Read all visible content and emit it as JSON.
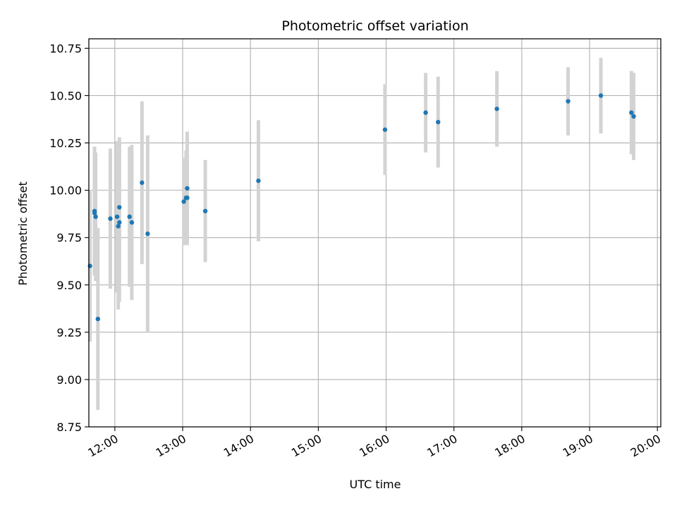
{
  "chart_data": {
    "type": "scatter",
    "title": "Photometric offset variation",
    "xlabel": "UTC time",
    "ylabel": "Photometric offset",
    "x_axis_kind": "time",
    "xlim": [
      "11:37",
      "20:03"
    ],
    "ylim": [
      8.75,
      10.8
    ],
    "grid": true,
    "x_ticks": [
      "12:00",
      "13:00",
      "14:00",
      "15:00",
      "16:00",
      "17:00",
      "18:00",
      "19:00",
      "20:00"
    ],
    "y_ticks": [
      "8.75",
      "9.00",
      "9.25",
      "9.50",
      "9.75",
      "10.00",
      "10.25",
      "10.50",
      "10.75"
    ],
    "colors": {
      "marker": "#1f77b4",
      "errorbar": "#d3d3d3",
      "grid": "#b0b0b0"
    },
    "series": [
      {
        "points": [
          {
            "x": "11:38",
            "y": 9.6,
            "yerr": 0.4
          },
          {
            "x": "11:42",
            "y": 9.89,
            "yerr": 0.34
          },
          {
            "x": "11:42",
            "y": 9.88,
            "yerr": 0.33
          },
          {
            "x": "11:43",
            "y": 9.86,
            "yerr": 0.34
          },
          {
            "x": "11:45",
            "y": 9.32,
            "yerr": 0.48
          },
          {
            "x": "11:56",
            "y": 9.85,
            "yerr": 0.37
          },
          {
            "x": "12:02",
            "y": 9.86,
            "yerr": 0.4
          },
          {
            "x": "12:03",
            "y": 9.81,
            "yerr": 0.44
          },
          {
            "x": "12:04",
            "y": 9.83,
            "yerr": 0.42
          },
          {
            "x": "12:04",
            "y": 9.91,
            "yerr": 0.37
          },
          {
            "x": "12:13",
            "y": 9.86,
            "yerr": 0.37
          },
          {
            "x": "12:15",
            "y": 9.83,
            "yerr": 0.41
          },
          {
            "x": "12:24",
            "y": 10.04,
            "yerr": 0.43
          },
          {
            "x": "12:29",
            "y": 9.77,
            "yerr": 0.52
          },
          {
            "x": "13:01",
            "y": 9.94,
            "yerr": 0.23
          },
          {
            "x": "13:03",
            "y": 9.96,
            "yerr": 0.25
          },
          {
            "x": "13:04",
            "y": 10.01,
            "yerr": 0.3
          },
          {
            "x": "13:04",
            "y": 9.96,
            "yerr": 0.23
          },
          {
            "x": "13:20",
            "y": 9.89,
            "yerr": 0.27
          },
          {
            "x": "14:07",
            "y": 10.05,
            "yerr": 0.32
          },
          {
            "x": "15:59",
            "y": 10.32,
            "yerr": 0.24
          },
          {
            "x": "16:35",
            "y": 10.41,
            "yerr": 0.21
          },
          {
            "x": "16:46",
            "y": 10.36,
            "yerr": 0.24
          },
          {
            "x": "17:38",
            "y": 10.43,
            "yerr": 0.2
          },
          {
            "x": "18:41",
            "y": 10.47,
            "yerr": 0.18
          },
          {
            "x": "19:10",
            "y": 10.5,
            "yerr": 0.2
          },
          {
            "x": "19:37",
            "y": 10.41,
            "yerr": 0.22
          },
          {
            "x": "19:39",
            "y": 10.39,
            "yerr": 0.23
          }
        ]
      }
    ]
  }
}
